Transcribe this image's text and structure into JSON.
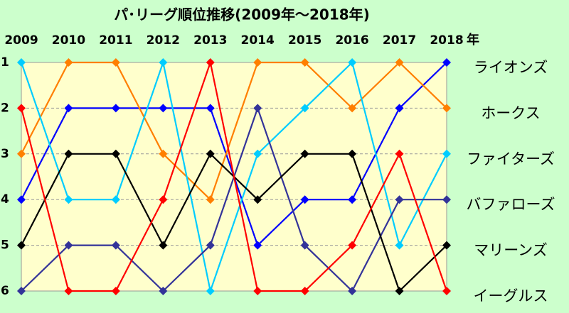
{
  "chart_data": {
    "type": "bump",
    "title": "パ･リーグ順位推移(2009年～2018年)",
    "categories": [
      "2009",
      "2010",
      "2011",
      "2012",
      "2013",
      "2014",
      "2015",
      "2016",
      "2017",
      "2018"
    ],
    "xlabel": "年",
    "ylim": [
      6,
      1
    ],
    "yticks": [
      1,
      2,
      3,
      4,
      5,
      6
    ],
    "grid": true,
    "series": [
      {
        "name": "ライオンズ",
        "color": "#0000ff",
        "values": [
          4,
          2,
          2,
          2,
          2,
          5,
          4,
          4,
          2,
          1
        ]
      },
      {
        "name": "ホークス",
        "color": "#ff7f00",
        "values": [
          3,
          1,
          1,
          3,
          4,
          1,
          1,
          2,
          1,
          2
        ]
      },
      {
        "name": "ファイターズ",
        "color": "#00ccff",
        "values": [
          1,
          4,
          4,
          1,
          6,
          3,
          2,
          1,
          5,
          3
        ]
      },
      {
        "name": "バファローズ",
        "color": "#333399",
        "values": [
          6,
          5,
          5,
          6,
          5,
          2,
          5,
          6,
          4,
          4
        ]
      },
      {
        "name": "マリーンズ",
        "color": "#000000",
        "values": [
          5,
          3,
          3,
          5,
          3,
          4,
          3,
          3,
          6,
          5
        ]
      },
      {
        "name": "イーグルス",
        "color": "#ff0000",
        "values": [
          2,
          6,
          6,
          4,
          1,
          6,
          6,
          5,
          3,
          6
        ]
      }
    ]
  }
}
